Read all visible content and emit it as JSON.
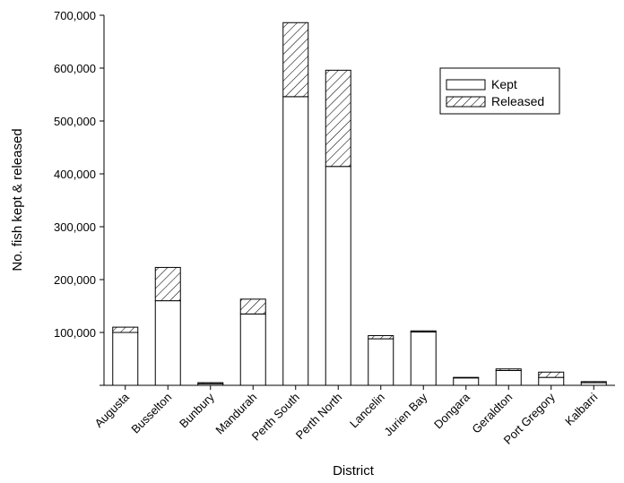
{
  "chart_data": {
    "type": "bar",
    "stacked": true,
    "xlabel": "District",
    "ylabel": "No. fish kept & released",
    "ylim": [
      0,
      700000
    ],
    "yticks": [
      0,
      100000,
      200000,
      300000,
      400000,
      500000,
      600000,
      700000
    ],
    "ytick_labels": [
      "",
      "100,000",
      "200,000",
      "300,000",
      "400,000",
      "500,000",
      "600,000",
      "700,000"
    ],
    "categories": [
      "Augusta",
      "Busselton",
      "Bunbury",
      "Mandurah",
      "Perth South",
      "Perth North",
      "Lancelin",
      "Jurien Bay",
      "Dongara",
      "Geraldton",
      "Port Gregory",
      "Kalbarri"
    ],
    "series": [
      {
        "name": "Kept",
        "pattern": "solid-white",
        "values": [
          100000,
          160000,
          3000,
          135000,
          546000,
          414000,
          88000,
          101000,
          14000,
          28000,
          15000,
          5000
        ]
      },
      {
        "name": "Released",
        "pattern": "diagonal-hatch",
        "values": [
          10000,
          63000,
          2000,
          28000,
          140000,
          182000,
          6000,
          2000,
          1000,
          3000,
          10000,
          2000
        ]
      }
    ],
    "legend_position": "top-right",
    "grid": false
  }
}
